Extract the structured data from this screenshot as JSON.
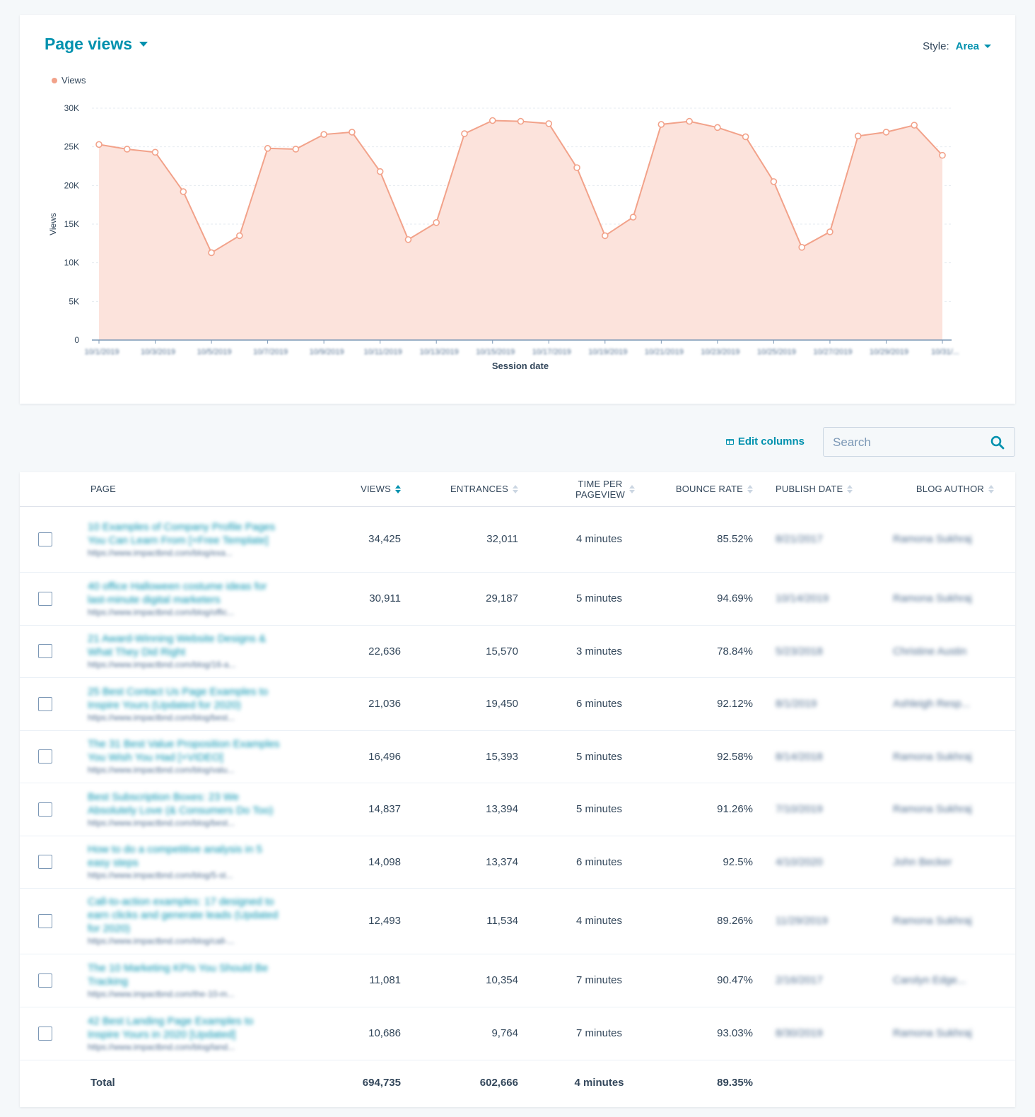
{
  "chart": {
    "title": "Page views",
    "style_label": "Style:",
    "style_value": "Area"
  },
  "chart_data": {
    "type": "area",
    "series": [
      {
        "name": "Views",
        "color": "#f2a28a",
        "values": [
          25300,
          24700,
          24300,
          19200,
          11300,
          13500,
          24800,
          24700,
          26600,
          26900,
          21800,
          13000,
          15200,
          26700,
          28400,
          28300,
          28000,
          22300,
          13500,
          15900,
          27900,
          28300,
          27500,
          26300,
          20500,
          12000,
          14000,
          26400,
          26900,
          27800,
          23900
        ]
      }
    ],
    "x_labels": [
      "10/1/2019",
      "10/3/2019",
      "10/5/2019",
      "10/7/2019",
      "10/9/2019",
      "10/11/2019",
      "10/13/2019",
      "10/15/2019",
      "10/17/2019",
      "10/19/2019",
      "10/21/2019",
      "10/23/2019",
      "10/25/2019",
      "10/27/2019",
      "10/29/2019",
      "10/31/..."
    ],
    "xlabel": "Session date",
    "ylabel": "Views",
    "yticks": [
      "0",
      "5K",
      "10K",
      "15K",
      "20K",
      "25K",
      "30K"
    ],
    "ylim": [
      0,
      30000
    ],
    "legend_position": "top-left",
    "grid": true
  },
  "toolbar": {
    "edit_columns": "Edit columns",
    "search_placeholder": "Search"
  },
  "table": {
    "headers": {
      "page": "PAGE",
      "views": "VIEWS",
      "entrances": "ENTRANCES",
      "time_per_pageview_1": "TIME PER",
      "time_per_pageview_2": "PAGEVIEW",
      "bounce_rate": "BOUNCE RATE",
      "publish_date": "PUBLISH DATE",
      "blog_author": "BLOG AUTHOR"
    },
    "rows": [
      {
        "title": "10 Examples of Company Profile Pages You Can Learn From [+Free Template]",
        "url": "https://www.impactbnd.com/blog/exa...",
        "views": "34,425",
        "entrances": "32,011",
        "time": "4 minutes",
        "bounce": "85.52%",
        "publish": "8/21/2017",
        "author": "Ramona Sukhraj"
      },
      {
        "title": "40 office Halloween costume ideas for last-minute digital marketers",
        "url": "https://www.impactbnd.com/blog/offic...",
        "views": "30,911",
        "entrances": "29,187",
        "time": "5 minutes",
        "bounce": "94.69%",
        "publish": "10/14/2019",
        "author": "Ramona Sukhraj"
      },
      {
        "title": "21 Award-Winning Website Designs & What They Did Right",
        "url": "https://www.impactbnd.com/blog/16-a...",
        "views": "22,636",
        "entrances": "15,570",
        "time": "3 minutes",
        "bounce": "78.84%",
        "publish": "5/23/2018",
        "author": "Christine Austin"
      },
      {
        "title": "25 Best Contact Us Page Examples to Inspire Yours (Updated for 2020)",
        "url": "https://www.impactbnd.com/blog/best...",
        "views": "21,036",
        "entrances": "19,450",
        "time": "6 minutes",
        "bounce": "92.12%",
        "publish": "8/1/2019",
        "author": "Ashleigh Resp..."
      },
      {
        "title": "The 31 Best Value Proposition Examples You Wish You Had [+VIDEO]",
        "url": "https://www.impactbnd.com/blog/valu...",
        "views": "16,496",
        "entrances": "15,393",
        "time": "5 minutes",
        "bounce": "92.58%",
        "publish": "8/14/2018",
        "author": "Ramona Sukhraj"
      },
      {
        "title": "Best Subscription Boxes: 23 We Absolutely Love (& Consumers Do Too)",
        "url": "https://www.impactbnd.com/blog/best...",
        "views": "14,837",
        "entrances": "13,394",
        "time": "5 minutes",
        "bounce": "91.26%",
        "publish": "7/10/2019",
        "author": "Ramona Sukhraj"
      },
      {
        "title": "How to do a competitive analysis in 5 easy steps",
        "url": "https://www.impactbnd.com/blog/5-st...",
        "views": "14,098",
        "entrances": "13,374",
        "time": "6 minutes",
        "bounce": "92.5%",
        "publish": "4/10/2020",
        "author": "John Becker"
      },
      {
        "title": "Call-to-action examples: 17 designed to earn clicks and generate leads (Updated for 2020)",
        "url": "https://www.impactbnd.com/blog/call-...",
        "views": "12,493",
        "entrances": "11,534",
        "time": "4 minutes",
        "bounce": "89.26%",
        "publish": "11/29/2019",
        "author": "Ramona Sukhraj"
      },
      {
        "title": "The 10 Marketing KPIs You Should Be Tracking",
        "url": "https://www.impactbnd.com/the-10-m...",
        "views": "11,081",
        "entrances": "10,354",
        "time": "7 minutes",
        "bounce": "90.47%",
        "publish": "2/16/2017",
        "author": "Carolyn Edge..."
      },
      {
        "title": "42 Best Landing Page Examples to Inspire Yours in 2020 [Updated]",
        "url": "https://www.impactbnd.com/blog/land...",
        "views": "10,686",
        "entrances": "9,764",
        "time": "7 minutes",
        "bounce": "93.03%",
        "publish": "8/30/2019",
        "author": "Ramona Sukhraj"
      }
    ],
    "total": {
      "label": "Total",
      "views": "694,735",
      "entrances": "602,666",
      "time": "4 minutes",
      "bounce": "89.35%"
    }
  }
}
